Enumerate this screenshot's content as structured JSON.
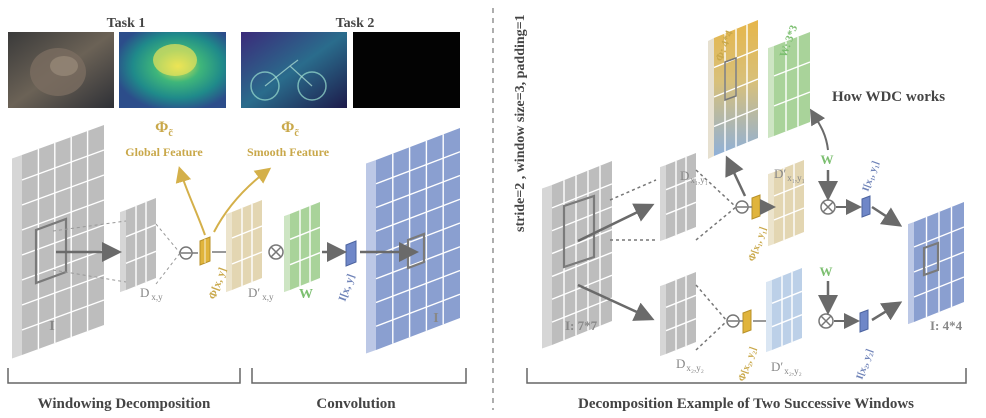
{
  "left_panel": {
    "task1_title": "Task 1",
    "task2_title": "Task 2",
    "phi_label": "Φ",
    "phi_sub": "c̃",
    "global_feature": "Global Feature",
    "smooth_feature": "Smooth Feature",
    "label_I_input": "I",
    "label_D": "D",
    "label_D_sub": "x,y",
    "label_phi_xy": "Φ[x, y]",
    "label_Dprime": "D′",
    "label_Dprime_sub": "x,y",
    "label_W": "W",
    "label_I_xy": "I[x, y]",
    "label_I_output": "I",
    "section_windowing": "Windowing Decomposition",
    "section_convolution": "Convolution"
  },
  "right_panel": {
    "rotated_caption": "stride=2 , window size=3, padding=1",
    "phi_4x4": "Φ: 4*4",
    "w_3x3": "W: 3*3",
    "how_wdc": "How WDC works",
    "label_D_x1y1": "D",
    "label_D_x1y1_sub": "x₁,y₁",
    "label_Dprime_x1y1": "D′",
    "label_Dprime_x1y1_sub": "x₁,y₁",
    "label_W_top": "W",
    "label_I_x1y1": "I[x₁, y₁]",
    "label_phi_x1y1": "Φ[x₁, y₁]",
    "label_I_77": "I: 7*7",
    "label_D_x2y2": "D",
    "label_D_x2y2_sub": "x₂,y₂",
    "label_phi_x2y2": "Φ[x₂, y₂]",
    "label_Dprime_x2y2": "D′",
    "label_Dprime_x2y2_sub": "x₂,y₂",
    "label_W_bottom": "W",
    "label_I_x2y2": "I[x₂, y₂]",
    "label_I_44": "I: 4*4",
    "section_example": "Decomposition Example of  Two Successive Windows"
  },
  "colors": {
    "gray_grid": "#bdbdbd",
    "tan_grid": "#e3d6b2",
    "green_grid": "#a9d39a",
    "blue_grid": "#8a9fd0",
    "gold": "#c9a84a",
    "phi_gradient_top": "#e8b84a",
    "phi_gradient_bottom": "#8fb0d8"
  }
}
